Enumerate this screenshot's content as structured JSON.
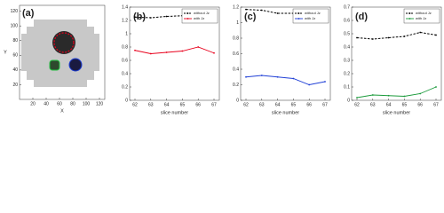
{
  "chart_data": [
    {
      "type": "image",
      "label": "(a)",
      "xlabel": "X",
      "ylabel": "Y",
      "xlim": [
        0,
        128
      ],
      "ylim": [
        0,
        128
      ],
      "xticks": [
        20,
        40,
        60,
        80,
        100,
        120
      ],
      "yticks": [
        20,
        40,
        60,
        80,
        100,
        120
      ]
    },
    {
      "type": "line",
      "label": "(b)",
      "xlabel": "slice number",
      "categories": [
        62,
        63,
        64,
        65,
        66,
        67
      ],
      "ylim": [
        0,
        1.4
      ],
      "yticks": [
        0,
        0.2,
        0.4,
        0.6,
        0.8,
        1,
        1.2,
        1.4
      ],
      "legend": "upper right",
      "series": [
        {
          "name": "without Jz",
          "color": "#000000",
          "dashed": true,
          "values": [
            1.25,
            1.24,
            1.26,
            1.27,
            1.26,
            1.25
          ]
        },
        {
          "name": "with Jz",
          "color": "#e8001c",
          "dashed": false,
          "values": [
            0.75,
            0.7,
            0.72,
            0.74,
            0.8,
            0.71
          ]
        }
      ]
    },
    {
      "type": "line",
      "label": "(c)",
      "xlabel": "slice number",
      "categories": [
        62,
        63,
        64,
        65,
        66,
        67
      ],
      "ylim": [
        0,
        1.2
      ],
      "yticks": [
        0,
        0.2,
        0.4,
        0.6,
        0.8,
        1,
        1.2
      ],
      "legend": "upper right",
      "series": [
        {
          "name": "without Jz",
          "color": "#000000",
          "dashed": true,
          "values": [
            1.17,
            1.16,
            1.12,
            1.12,
            1.12,
            1.12
          ]
        },
        {
          "name": "with Jz",
          "color": "#1f3fd6",
          "dashed": false,
          "values": [
            0.3,
            0.32,
            0.3,
            0.28,
            0.2,
            0.24
          ]
        }
      ]
    },
    {
      "type": "line",
      "label": "(d)",
      "xlabel": "slice number",
      "categories": [
        62,
        63,
        64,
        65,
        66,
        67
      ],
      "ylim": [
        0,
        0.7
      ],
      "yticks": [
        0,
        0.1,
        0.2,
        0.3,
        0.4,
        0.5,
        0.6,
        0.7
      ],
      "legend": "upper right",
      "series": [
        {
          "name": "without Jz",
          "color": "#000000",
          "dashed": true,
          "values": [
            0.47,
            0.46,
            0.47,
            0.48,
            0.51,
            0.49
          ]
        },
        {
          "name": "with Jz",
          "color": "#1a9a3a",
          "dashed": false,
          "values": [
            0.02,
            0.04,
            0.035,
            0.03,
            0.05,
            0.1
          ]
        }
      ]
    }
  ]
}
